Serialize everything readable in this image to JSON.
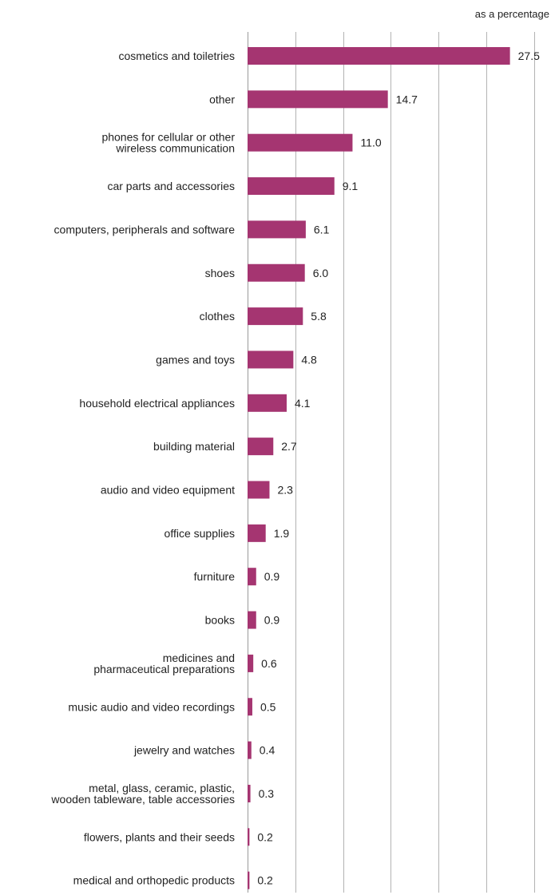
{
  "chart_data": {
    "type": "bar",
    "orientation": "horizontal",
    "unit_label": "as a percentage",
    "categories": [
      [
        "cosmetics and toiletries"
      ],
      [
        "other"
      ],
      [
        "phones for cellular or other",
        "wireless communication"
      ],
      [
        "car parts and accessories"
      ],
      [
        "computers, peripherals and software"
      ],
      [
        "shoes"
      ],
      [
        "clothes"
      ],
      [
        "games and toys"
      ],
      [
        "household electrical appliances"
      ],
      [
        "building material"
      ],
      [
        "audio and video equipment"
      ],
      [
        "office supplies"
      ],
      [
        "furniture"
      ],
      [
        "books"
      ],
      [
        "medicines and",
        "pharmaceutical preparations"
      ],
      [
        "music audio and video recordings"
      ],
      [
        "jewelry and watches"
      ],
      [
        "metal, glass, ceramic, plastic,",
        "wooden tableware, table accessories"
      ],
      [
        "flowers, plants and their seeds"
      ],
      [
        "medical and orthopedic products"
      ]
    ],
    "values": [
      27.5,
      14.7,
      11.0,
      9.1,
      6.1,
      6.0,
      5.8,
      4.8,
      4.1,
      2.7,
      2.3,
      1.9,
      0.9,
      0.9,
      0.6,
      0.5,
      0.4,
      0.3,
      0.2,
      0.2
    ],
    "value_labels": [
      "27.5",
      "14.7",
      "11.0",
      "9.1",
      "6.1",
      "6.0",
      "5.8",
      "4.8",
      "4.1",
      "2.7",
      "2.3",
      "1.9",
      "0.9",
      "0.9",
      "0.6",
      "0.5",
      "0.4",
      "0.3",
      "0.2",
      "0.2"
    ],
    "xlim": [
      0,
      30
    ],
    "x_grid_step": 5,
    "grid": true,
    "legend": "none",
    "colors": {
      "bar": "#a53571",
      "grid": "#b3b3b3",
      "text": "#222222"
    }
  }
}
